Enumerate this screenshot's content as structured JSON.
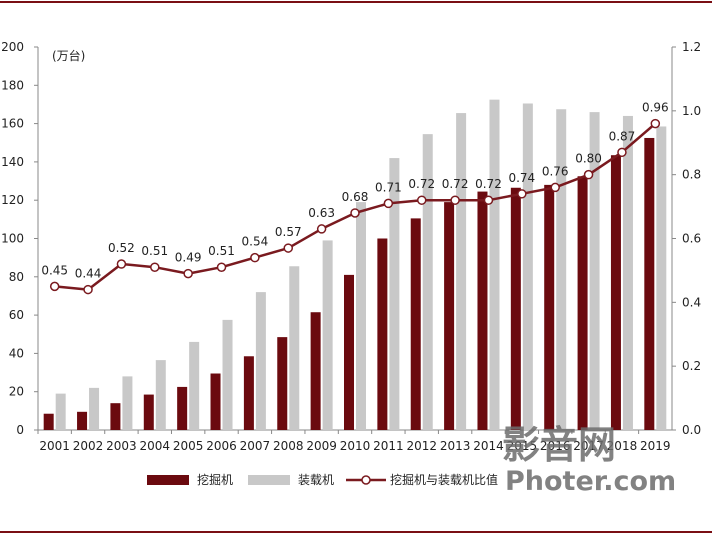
{
  "chart_data": {
    "type": "bar",
    "unit_label": "(万台)",
    "categories": [
      "2001",
      "2002",
      "2003",
      "2004",
      "2005",
      "2006",
      "2007",
      "2008",
      "2009",
      "2010",
      "2011",
      "2012",
      "2013",
      "2014",
      "2015",
      "2016",
      "2017",
      "2018",
      "2019"
    ],
    "series": [
      {
        "name": "挖掘机",
        "type": "bar",
        "axis": "left",
        "color": "#6b0a0f",
        "values": [
          8.5,
          9.5,
          14,
          18.5,
          22.5,
          29.5,
          38.5,
          48.5,
          61.5,
          81,
          100,
          110.5,
          119,
          124.5,
          126.5,
          128,
          132.5,
          143.5,
          152.5
        ]
      },
      {
        "name": "装载机",
        "type": "bar",
        "axis": "left",
        "color": "#c8c8c8",
        "values": [
          19,
          22,
          28,
          36.5,
          46,
          57.5,
          72,
          85.5,
          99,
          119,
          142,
          154.5,
          165.5,
          172.5,
          170.5,
          167.5,
          166,
          164,
          158.5
        ]
      },
      {
        "name": "挖掘机与装载机比值",
        "type": "line",
        "axis": "right",
        "color": "#7a1a1f",
        "values": [
          0.45,
          0.44,
          0.52,
          0.51,
          0.49,
          0.51,
          0.54,
          0.57,
          0.63,
          0.68,
          0.71,
          0.72,
          0.72,
          0.72,
          0.74,
          0.76,
          0.8,
          0.87,
          0.96
        ]
      }
    ],
    "data_labels": [
      "0.45",
      "0.44",
      "0.52",
      "0.51",
      "0.49",
      "0.51",
      "0.54",
      "0.57",
      "0.63",
      "0.68",
      "0.71",
      "0.72",
      "0.72",
      "0.72",
      "0.74",
      "0.76",
      "0.80",
      "0.87",
      "0.96"
    ],
    "ylim_left": [
      0,
      200
    ],
    "yticks_left": [
      "0",
      "20",
      "40",
      "60",
      "80",
      "100",
      "120",
      "140",
      "160",
      "180",
      "200"
    ],
    "ylim_right": [
      0,
      1.2
    ],
    "yticks_right": [
      "0.0",
      "0.2",
      "0.4",
      "0.6",
      "0.8",
      "1.0",
      "1.2"
    ],
    "legend_position": "bottom",
    "grid": false
  },
  "watermark": {
    "line1": "影音网",
    "line2": "Photer.com"
  },
  "colors": {
    "rule": "#7a0f14",
    "axis": "#888888"
  }
}
